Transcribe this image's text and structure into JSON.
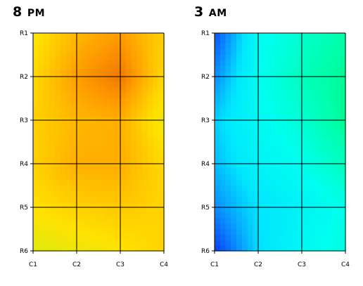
{
  "chart_data": [
    {
      "type": "heatmap",
      "title": "8 PM",
      "title_hour": "8",
      "title_ampm": "PM",
      "x_ticks": [
        "C1",
        "C2",
        "C3",
        "C4"
      ],
      "y_ticks": [
        "R1",
        "R2",
        "R3",
        "R4",
        "R5",
        "R6"
      ],
      "grid": true,
      "colormap": "green-yellow-orange",
      "colors": [
        "#9be61e",
        "#d7ec12",
        "#ffe100",
        "#ffc000",
        "#ff9c00",
        "#f07800"
      ],
      "values": [
        [
          0.35,
          0.65,
          0.8,
          0.5
        ],
        [
          0.45,
          0.8,
          1.0,
          0.45
        ],
        [
          0.5,
          0.65,
          0.7,
          0.3
        ],
        [
          0.5,
          0.7,
          0.7,
          0.45
        ],
        [
          0.4,
          0.5,
          0.55,
          0.48
        ],
        [
          0.25,
          0.3,
          0.38,
          0.48
        ]
      ]
    },
    {
      "type": "heatmap",
      "title": "3 AM",
      "title_hour": "3",
      "title_ampm": "AM",
      "x_ticks": [
        "C1",
        "C2",
        "C3",
        "C4"
      ],
      "y_ticks": [
        "R1",
        "R2",
        "R3",
        "R4",
        "R5",
        "R6"
      ],
      "grid": true,
      "colormap": "blue-cyan-green",
      "colors": [
        "#0a3cf0",
        "#0a8cff",
        "#00e6ff",
        "#00ffee",
        "#00ffaa",
        "#00e650"
      ],
      "values": [
        [
          0.05,
          0.55,
          0.7,
          0.8
        ],
        [
          0.2,
          0.58,
          0.75,
          0.85
        ],
        [
          0.35,
          0.55,
          0.68,
          0.85
        ],
        [
          0.3,
          0.5,
          0.6,
          0.75
        ],
        [
          0.2,
          0.4,
          0.5,
          0.62
        ],
        [
          0.0,
          0.38,
          0.55,
          0.65
        ]
      ]
    }
  ]
}
